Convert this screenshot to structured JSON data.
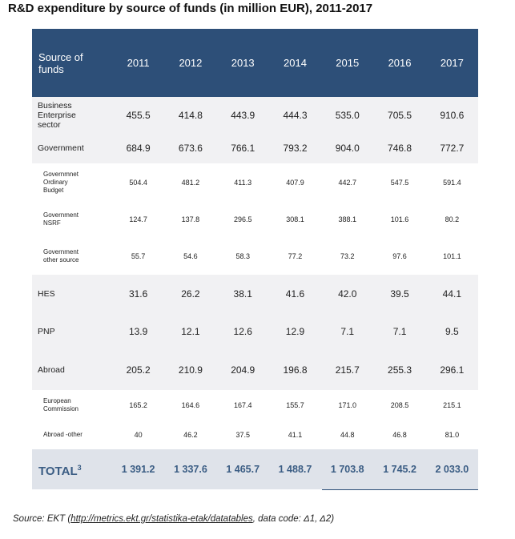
{
  "title": "R&D expenditure by source of funds (in million EUR), 2011-2017",
  "table": {
    "header_label_line1": "Source of",
    "header_label_line2": "funds",
    "years": [
      "2011",
      "2012",
      "2013",
      "2014",
      "2015",
      "2016",
      "2017"
    ],
    "rows": [
      {
        "label_lines": [
          "Business",
          "Enterprise",
          "sector"
        ],
        "values": [
          "455.5",
          "414.8",
          "443.9",
          "444.3",
          "535.0",
          "705.5",
          "910.6"
        ]
      },
      {
        "label_lines": [
          "Government"
        ],
        "values": [
          "684.9",
          "673.6",
          "766.1",
          "793.2",
          "904.0",
          "746.8",
          "772.7"
        ]
      },
      {
        "label_lines": [
          "Governmnet",
          "Ordinary",
          "Budget"
        ],
        "values": [
          "504.4",
          "481.2",
          "411.3",
          "407.9",
          "442.7",
          "547.5",
          "591.4"
        ]
      },
      {
        "label_lines": [
          "Government",
          "NSRF"
        ],
        "values": [
          "124.7",
          "137.8",
          "296.5",
          "308.1",
          "388.1",
          "101.6",
          "80.2"
        ]
      },
      {
        "label_lines": [
          "Government",
          "other source"
        ],
        "values": [
          "55.7",
          "54.6",
          "58.3",
          "77.2",
          "73.2",
          "97.6",
          "101.1"
        ]
      },
      {
        "label_lines": [
          "HES"
        ],
        "values": [
          "31.6",
          "26.2",
          "38.1",
          "41.6",
          "42.0",
          "39.5",
          "44.1"
        ]
      },
      {
        "label_lines": [
          "PNP"
        ],
        "values": [
          "13.9",
          "12.1",
          "12.6",
          "12.9",
          "7.1",
          "7.1",
          "9.5"
        ]
      },
      {
        "label_lines": [
          "Abroad"
        ],
        "values": [
          "205.2",
          "210.9",
          "204.9",
          "196.8",
          "215.7",
          "255.3",
          "296.1"
        ]
      },
      {
        "label_lines": [
          "European",
          "Commission"
        ],
        "values": [
          "165.2",
          "164.6",
          "167.4",
          "155.7",
          "171.0",
          "208.5",
          "215.1"
        ]
      },
      {
        "label_lines": [
          "Abroad -other"
        ],
        "values": [
          "40",
          "46.2",
          "37.5",
          "41.1",
          "44.8",
          "46.8",
          "81.0"
        ]
      }
    ],
    "total": {
      "label": "TOTAL",
      "superscript": "3",
      "values": [
        "1 391.2",
        "1 337.6",
        "1 465.7",
        "1 488.7",
        "1 703.8",
        "1 745.2",
        "2 033.0"
      ]
    }
  },
  "source": {
    "prefix": "Source: EKT (",
    "link": "http://metrics.ekt.gr/statistika-etak/datatables",
    "suffix": ", data code: Δ1, Δ2)"
  }
}
